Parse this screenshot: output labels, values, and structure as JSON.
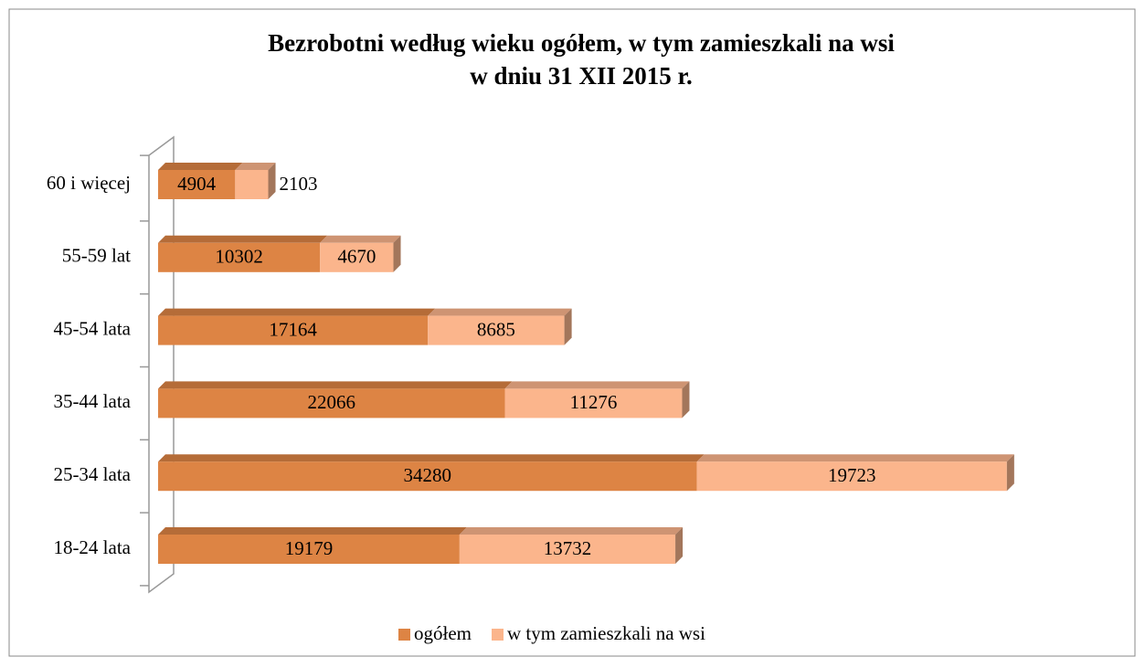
{
  "chart_data": {
    "type": "bar3d-stacked-horizontal",
    "title": [
      "Bezrobotni według wieku ogółem, w tym zamieszkali na wsi",
      "w dniu 31 XII 2015 r."
    ],
    "categories": [
      "60 i więcej",
      "55-59 lat",
      "45-54 lata",
      "35-44 lata",
      "25-34 lata",
      "18-24 lata"
    ],
    "series": [
      {
        "name": "ogółem",
        "color": "#dd8444",
        "values": [
          4904,
          10302,
          17164,
          22066,
          34280,
          19179
        ]
      },
      {
        "name": "w tym zamieszkali na wsi",
        "color": "#fbb58c",
        "values": [
          2103,
          4670,
          8685,
          11276,
          19723,
          13732
        ]
      }
    ],
    "xlim": [
      0,
      60000
    ],
    "legend": "bottom"
  }
}
